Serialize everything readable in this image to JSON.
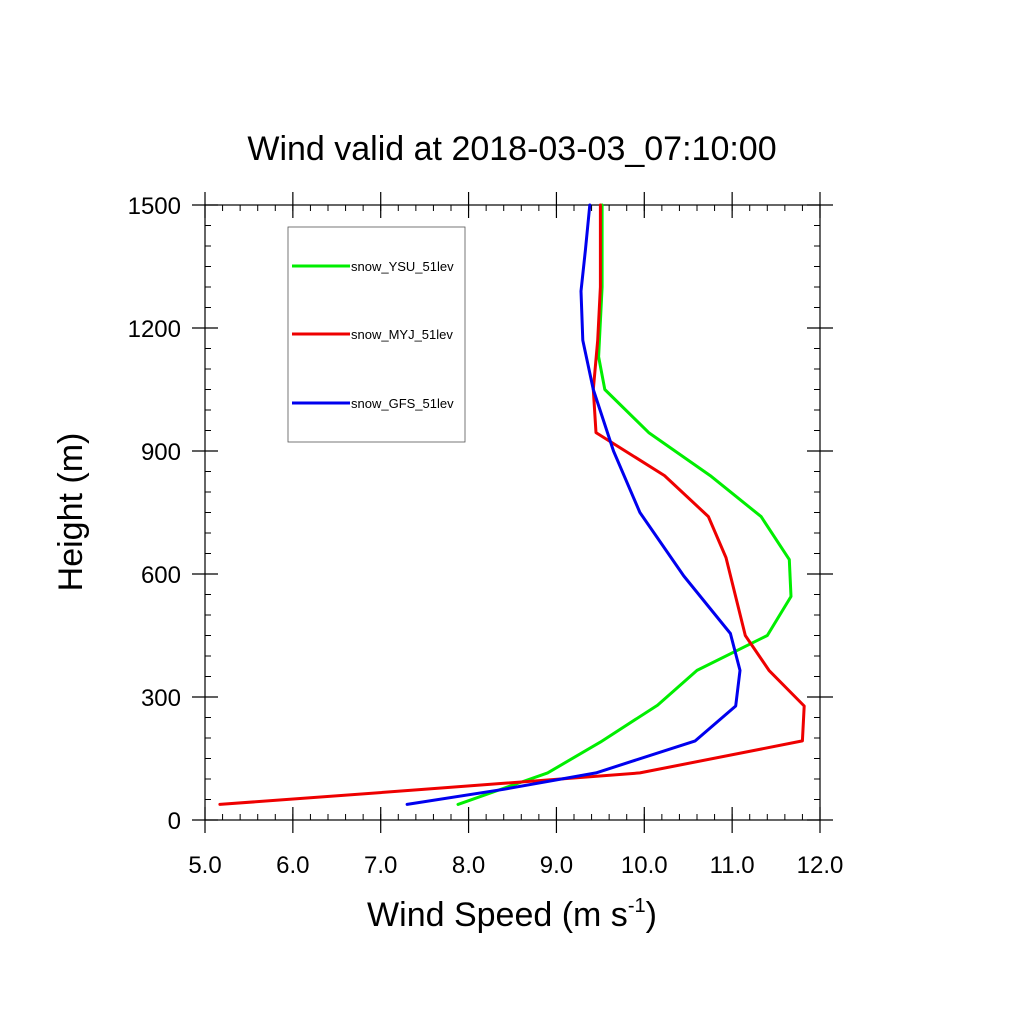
{
  "chart_data": {
    "type": "line",
    "title": "Wind valid at 2018-03-03_07:10:00",
    "xlabel": "Wind Speed (m s",
    "xlabel_superscript": "-1",
    "xlabel_suffix": ")",
    "ylabel": "Height (m)",
    "xlim": [
      5.0,
      12.0
    ],
    "ylim": [
      0,
      1500
    ],
    "x_ticks": [
      "5.0",
      "6.0",
      "7.0",
      "8.0",
      "9.0",
      "10.0",
      "11.0",
      "12.0"
    ],
    "y_ticks": [
      "0",
      "300",
      "600",
      "900",
      "1200",
      "1500"
    ],
    "legend_position": "top-left",
    "series": [
      {
        "name": "snow_YSU_51lev",
        "color": "#00ee00",
        "points": [
          [
            7.88,
            38
          ],
          [
            8.9,
            115
          ],
          [
            9.5,
            190
          ],
          [
            10.15,
            280
          ],
          [
            10.6,
            365
          ],
          [
            11.4,
            450
          ],
          [
            11.67,
            545
          ],
          [
            11.65,
            635
          ],
          [
            11.33,
            740
          ],
          [
            10.75,
            840
          ],
          [
            10.05,
            945
          ],
          [
            9.55,
            1050
          ],
          [
            9.48,
            1130
          ],
          [
            9.52,
            1300
          ],
          [
            9.52,
            1500
          ]
        ]
      },
      {
        "name": "snow_MYJ_51lev",
        "color": "#ee0000",
        "points": [
          [
            5.17,
            38
          ],
          [
            7.5,
            75
          ],
          [
            9.95,
            115
          ],
          [
            11.8,
            193
          ],
          [
            11.82,
            278
          ],
          [
            11.42,
            365
          ],
          [
            11.15,
            450
          ],
          [
            10.93,
            640
          ],
          [
            10.73,
            740
          ],
          [
            10.23,
            840
          ],
          [
            9.45,
            945
          ],
          [
            9.42,
            1050
          ],
          [
            9.47,
            1170
          ],
          [
            9.5,
            1300
          ],
          [
            9.5,
            1500
          ]
        ]
      },
      {
        "name": "snow_GFS_51lev",
        "color": "#0000ee",
        "points": [
          [
            7.3,
            38
          ],
          [
            8.4,
            75
          ],
          [
            9.45,
            115
          ],
          [
            10.58,
            193
          ],
          [
            11.04,
            278
          ],
          [
            11.09,
            365
          ],
          [
            10.98,
            455
          ],
          [
            10.45,
            595
          ],
          [
            9.95,
            750
          ],
          [
            9.65,
            900
          ],
          [
            9.42,
            1050
          ],
          [
            9.3,
            1170
          ],
          [
            9.28,
            1290
          ],
          [
            9.33,
            1390
          ],
          [
            9.38,
            1500
          ]
        ]
      }
    ]
  }
}
